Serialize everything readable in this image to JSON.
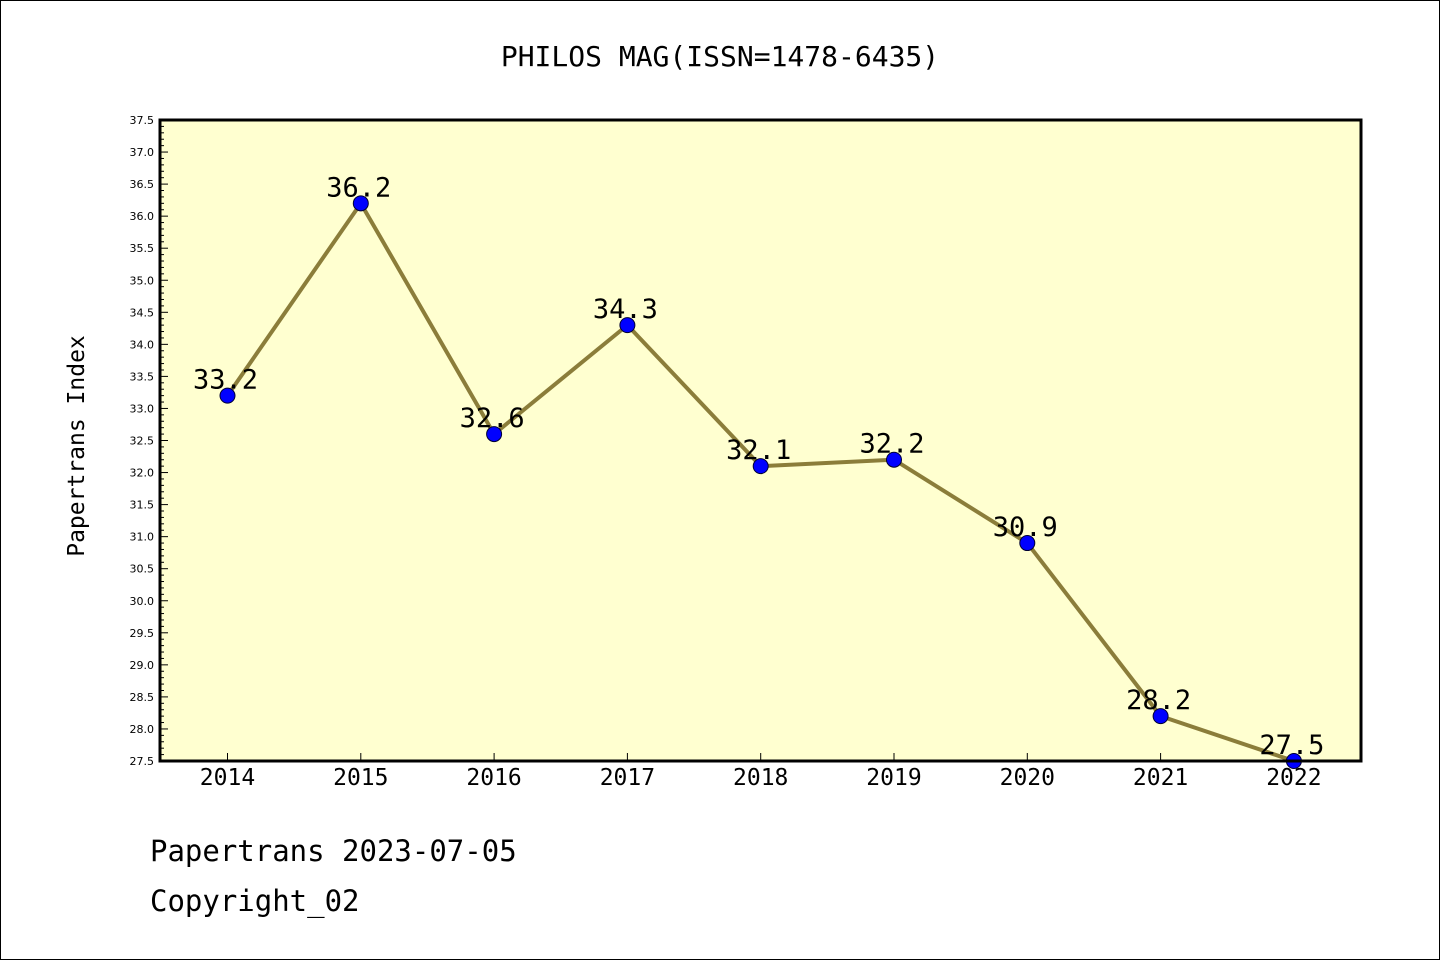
{
  "chart_data": {
    "type": "line",
    "title": "PHILOS MAG(ISSN=1478-6435)",
    "xlabel": "",
    "ylabel": "Papertrans Index",
    "x": [
      "2014",
      "2015",
      "2016",
      "2017",
      "2018",
      "2019",
      "2020",
      "2021",
      "2022"
    ],
    "values": [
      33.2,
      36.2,
      32.6,
      34.3,
      32.1,
      32.2,
      30.9,
      28.2,
      27.5
    ],
    "data_labels": [
      "33.2",
      "36.2",
      "32.6",
      "34.3",
      "32.1",
      "32.2",
      "30.9",
      "28.2",
      "27.5"
    ],
    "ylim": [
      27.5,
      37.5
    ],
    "ytick_step": 0.5,
    "grid": false,
    "plot_background": "#ffffd0",
    "line_color": "#8b7d3a",
    "marker_color": "#0000ff"
  },
  "footer": {
    "line1": "Papertrans 2023-07-05",
    "line2": "Copyright_02"
  }
}
